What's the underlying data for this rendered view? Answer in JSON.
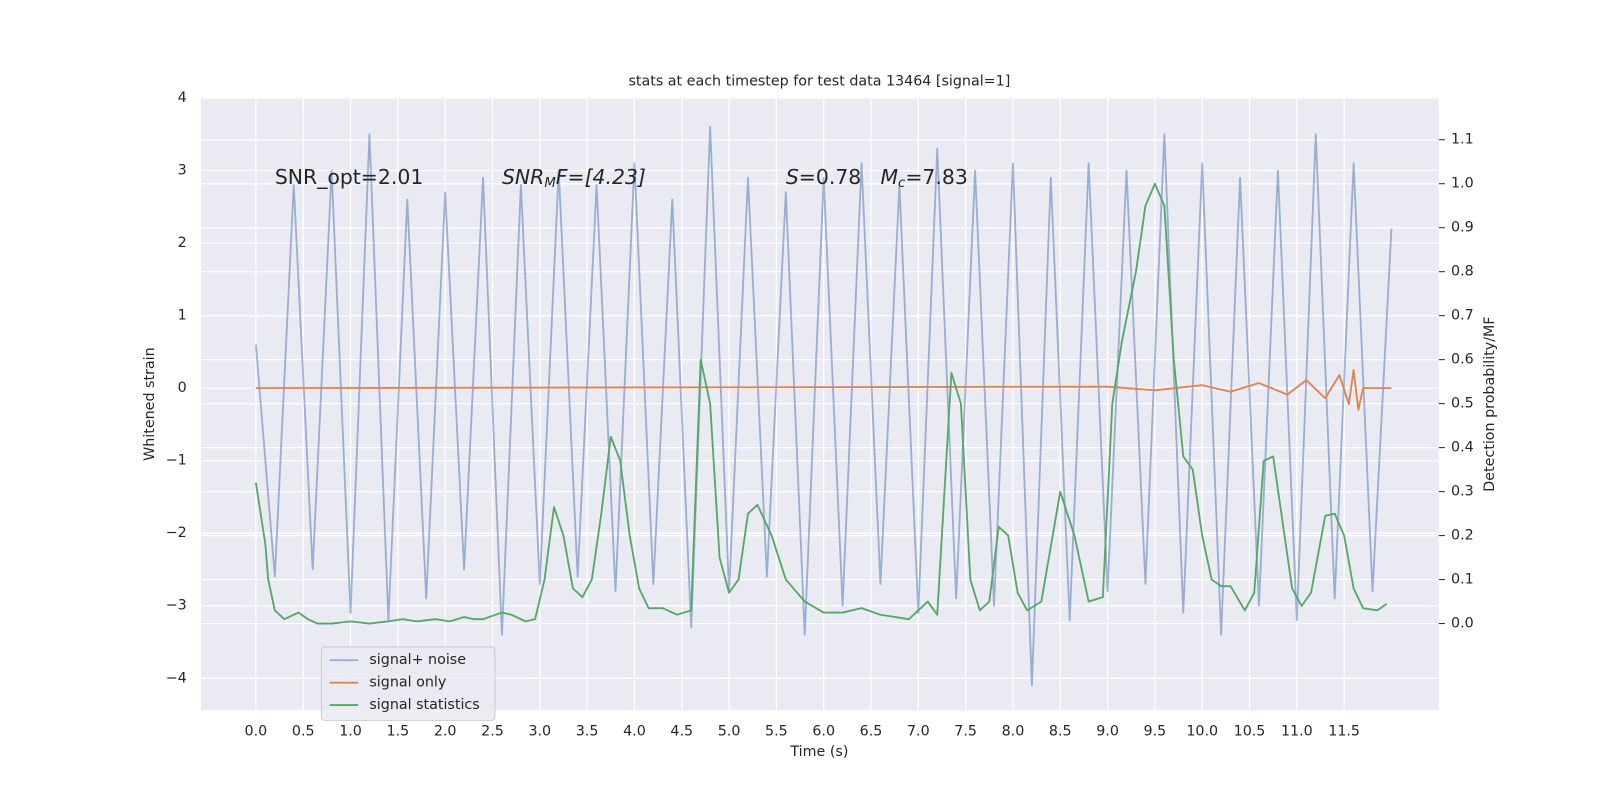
{
  "chart_data": {
    "type": "line",
    "title": "stats at each timestep for test data 13464 [signal=1]",
    "xlabel": "Time (s)",
    "ylabel": "Whitened strain",
    "y2label": "Detection probability/MF",
    "xlim": [
      -0.58,
      12.5
    ],
    "ylim": [
      -4.44,
      4.0
    ],
    "y2lim": [
      -0.197,
      1.195
    ],
    "xticks": [
      {
        "value": 0,
        "label": "0.0"
      },
      0.5,
      {
        "value": 1,
        "label": "1.0"
      },
      1.5,
      {
        "value": 2,
        "label": "2.0"
      },
      2.5,
      {
        "value": 3,
        "label": "3.0"
      },
      3.5,
      {
        "value": 4,
        "label": "4.0"
      },
      4.5,
      {
        "value": 5,
        "label": "5.0"
      },
      5.5,
      {
        "value": 6,
        "label": "6.0"
      },
      6.5,
      {
        "value": 7,
        "label": "7.0"
      },
      7.5,
      {
        "value": 8,
        "label": "8.0"
      },
      8.5,
      {
        "value": 9,
        "label": "9.0"
      },
      9.5,
      {
        "value": 10,
        "label": "10.0"
      },
      10.5,
      {
        "value": 11,
        "label": "11.0"
      },
      11.5
    ],
    "yticks": [
      {
        "value": -4,
        "label": "−4"
      },
      {
        "value": -3,
        "label": "−3"
      },
      {
        "value": -2,
        "label": "−2"
      },
      {
        "value": -1,
        "label": "−1"
      },
      0,
      1,
      2,
      3,
      4
    ],
    "y2ticks": [
      {
        "value": 0,
        "label": "0.0"
      },
      0.1,
      0.2,
      0.3,
      0.4,
      0.5,
      0.6,
      0.7,
      0.8,
      0.9,
      {
        "value": 1,
        "label": "1.0"
      },
      1.1
    ],
    "grid": true,
    "legend": "lower left",
    "annotations": [
      {
        "base": "SNR_opt=2.01"
      },
      {
        "base": "SNR",
        "sub": "M",
        "rest": "F=[4.23]"
      },
      {
        "base": "S",
        "rest": "=0.78"
      },
      {
        "base": "M",
        "sub": "c",
        "rest": "=7.83"
      }
    ],
    "series": [
      {
        "name": "signal+ noise",
        "color": "#4c72b0",
        "alpha": 0.5,
        "x": [
          0,
          0.2,
          0.4,
          0.6,
          0.8,
          1,
          1.2,
          1.4,
          1.6,
          1.8,
          2,
          2.2,
          2.4,
          2.6,
          2.8,
          3,
          3.2,
          3.4,
          3.6,
          3.8,
          4,
          4.2,
          4.4,
          4.6,
          4.8,
          5,
          5.2,
          5.4,
          5.6,
          5.8,
          6,
          6.2,
          6.4,
          6.6,
          6.8,
          7,
          7.2,
          7.4,
          7.6,
          7.8,
          8,
          8.2,
          8.4,
          8.6,
          8.8,
          9,
          9.2,
          9.4,
          9.6,
          9.8,
          10,
          10.2,
          10.4,
          10.6,
          10.8,
          11,
          11.2,
          11.4,
          11.6,
          11.8,
          12
        ],
        "values": [
          0.6,
          -2.6,
          2.8,
          -2.5,
          3.0,
          -3.1,
          3.5,
          -3.2,
          2.6,
          -2.9,
          2.7,
          -2.5,
          2.9,
          -3.4,
          2.8,
          -2.7,
          3.0,
          -2.6,
          2.8,
          -2.8,
          3.1,
          -2.7,
          2.6,
          -3.3,
          3.6,
          -2.8,
          2.9,
          -2.6,
          2.7,
          -3.4,
          2.9,
          -3.0,
          3.1,
          -2.7,
          2.8,
          -3.1,
          3.3,
          -2.9,
          3.0,
          -3.0,
          3.1,
          -4.1,
          2.9,
          -3.2,
          3.1,
          -2.8,
          3.0,
          -2.7,
          3.5,
          -3.1,
          3.1,
          -3.4,
          2.9,
          -3.0,
          3.0,
          -3.2,
          3.5,
          -2.9,
          3.1,
          -2.8,
          2.2
        ]
      },
      {
        "name": "signal only",
        "color": "#dd8452",
        "x": [
          0,
          9.0,
          9.5,
          10.0,
          10.3,
          10.6,
          10.9,
          11.1,
          11.3,
          11.45,
          11.55,
          11.6,
          11.65,
          11.7,
          12.0
        ],
        "values": [
          0,
          0.02,
          -0.03,
          0.04,
          -0.05,
          0.07,
          -0.09,
          0.11,
          -0.14,
          0.18,
          -0.22,
          0.25,
          -0.3,
          0,
          0
        ]
      },
      {
        "name": "signal statistics",
        "color": "#55a868",
        "axis": "y2",
        "x": [
          0,
          0.1,
          0.13,
          0.2,
          0.3,
          0.4,
          0.45,
          0.55,
          0.65,
          0.8,
          1.0,
          1.2,
          1.4,
          1.55,
          1.7,
          1.9,
          2.05,
          2.2,
          2.3,
          2.4,
          2.6,
          2.7,
          2.85,
          2.95,
          3.05,
          3.15,
          3.25,
          3.35,
          3.45,
          3.55,
          3.65,
          3.75,
          3.85,
          3.95,
          4.05,
          4.15,
          4.3,
          4.45,
          4.6,
          4.7,
          4.8,
          4.9,
          5.0,
          5.1,
          5.2,
          5.3,
          5.45,
          5.6,
          5.8,
          6.0,
          6.2,
          6.4,
          6.6,
          6.9,
          7.1,
          7.2,
          7.35,
          7.45,
          7.55,
          7.65,
          7.75,
          7.85,
          7.95,
          8.05,
          8.15,
          8.3,
          8.5,
          8.65,
          8.8,
          8.95,
          9.05,
          9.15,
          9.3,
          9.4,
          9.5,
          9.6,
          9.7,
          9.8,
          9.9,
          10.0,
          10.1,
          10.2,
          10.3,
          10.45,
          10.55,
          10.65,
          10.75,
          10.85,
          10.95,
          11.05,
          11.15,
          11.3,
          11.4,
          11.5,
          11.6,
          11.7,
          11.85,
          11.95
        ],
        "values": [
          0.32,
          0.18,
          0.1,
          0.03,
          0.01,
          0.02,
          0.025,
          0.01,
          0.0,
          0.0,
          0.005,
          0.0,
          0.005,
          0.01,
          0.005,
          0.01,
          0.005,
          0.015,
          0.01,
          0.01,
          0.025,
          0.02,
          0.005,
          0.01,
          0.1,
          0.265,
          0.2,
          0.08,
          0.06,
          0.1,
          0.25,
          0.425,
          0.37,
          0.2,
          0.08,
          0.035,
          0.035,
          0.02,
          0.03,
          0.6,
          0.5,
          0.15,
          0.07,
          0.1,
          0.25,
          0.27,
          0.2,
          0.1,
          0.05,
          0.025,
          0.025,
          0.035,
          0.02,
          0.01,
          0.05,
          0.02,
          0.57,
          0.5,
          0.1,
          0.03,
          0.05,
          0.22,
          0.2,
          0.07,
          0.03,
          0.05,
          0.3,
          0.2,
          0.05,
          0.06,
          0.5,
          0.64,
          0.8,
          0.95,
          1.0,
          0.95,
          0.6,
          0.38,
          0.35,
          0.2,
          0.1,
          0.085,
          0.085,
          0.03,
          0.07,
          0.37,
          0.38,
          0.23,
          0.08,
          0.04,
          0.07,
          0.245,
          0.25,
          0.2,
          0.08,
          0.035,
          0.03,
          0.045
        ]
      }
    ]
  }
}
